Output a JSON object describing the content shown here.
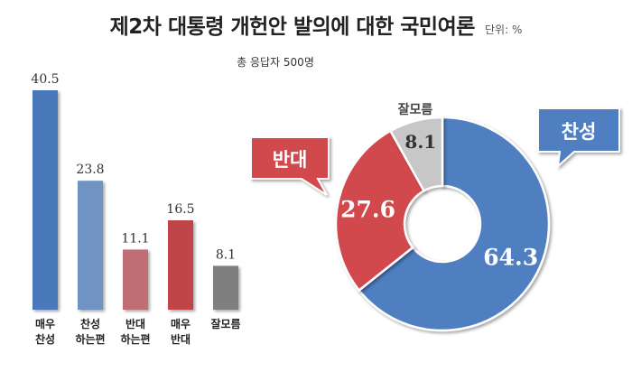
{
  "title": "제2차 대통령 개헌안 발의에 대한 국민여론",
  "unit": "단위: %",
  "subtitle": "총 응답자 500명",
  "colors": {
    "strong_agree": "#4a78bb",
    "agree": "#7193c4",
    "disagree": "#bf6e73",
    "strong_disagree": "#c04448",
    "unknown": "#7f7f7f",
    "pie_agree": "#4f7fc1",
    "pie_disagree": "#d2484d",
    "pie_unknown": "#c7c7c7"
  },
  "chart_data": [
    {
      "type": "bar",
      "categories": [
        [
          "매우",
          "찬성"
        ],
        [
          "찬성",
          "하는편"
        ],
        [
          "반대",
          "하는편"
        ],
        [
          "매우",
          "반대"
        ],
        [
          "잘모름"
        ]
      ],
      "values": [
        40.5,
        23.8,
        11.1,
        16.5,
        8.1
      ],
      "value_labels": [
        "40.5",
        "23.8",
        "11.1",
        "16.5",
        "8.1"
      ],
      "ylim": [
        0,
        40.5
      ],
      "grid": false
    },
    {
      "type": "pie",
      "donut": true,
      "labels": [
        "찬성",
        "반대",
        "잘모름"
      ],
      "values": [
        64.3,
        27.6,
        8.1
      ],
      "value_labels": [
        "64.3",
        "27.6",
        "8.1"
      ]
    }
  ]
}
